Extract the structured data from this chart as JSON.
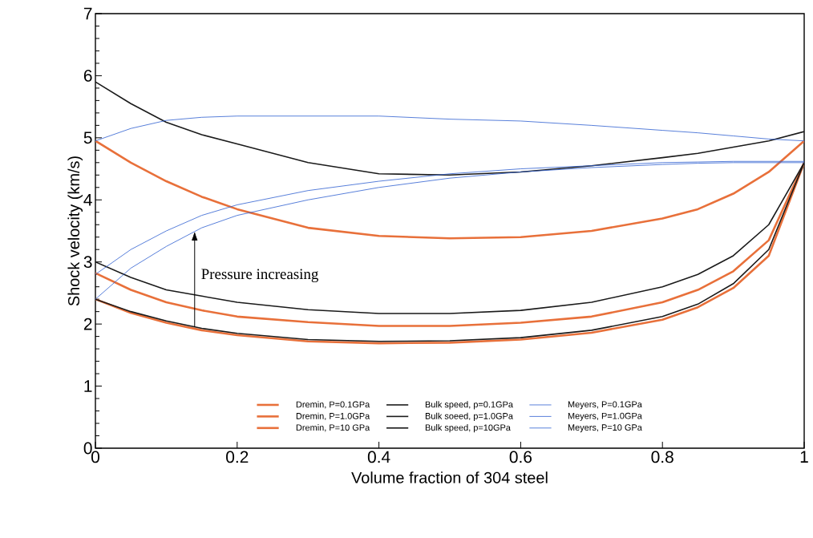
{
  "chart_data": {
    "type": "line",
    "xlabel": "Volume fraction of 304 steel",
    "ylabel": "Shock velocity (km/s)",
    "x": [
      0,
      0.05,
      0.1,
      0.15,
      0.2,
      0.3,
      0.4,
      0.5,
      0.6,
      0.7,
      0.8,
      0.85,
      0.9,
      0.95,
      1
    ],
    "series": [
      {
        "name": "Dremin, P=0.1GPa",
        "color": "#e8703a",
        "values": [
          2.4,
          2.18,
          2.02,
          1.9,
          1.82,
          1.72,
          1.69,
          1.7,
          1.75,
          1.86,
          2.07,
          2.27,
          2.58,
          3.1,
          4.6
        ]
      },
      {
        "name": "Dremin, P=1.0GPa",
        "color": "#e8703a",
        "values": [
          2.82,
          2.55,
          2.35,
          2.22,
          2.12,
          2.03,
          1.97,
          1.97,
          2.02,
          2.12,
          2.35,
          2.55,
          2.85,
          3.35,
          4.6
        ]
      },
      {
        "name": "Dremin, P=10 GPa",
        "color": "#e8703a",
        "values": [
          4.95,
          4.6,
          4.3,
          4.05,
          3.85,
          3.55,
          3.42,
          3.38,
          3.4,
          3.5,
          3.7,
          3.85,
          4.1,
          4.45,
          4.95
        ]
      },
      {
        "name": "Bulk speed, p=0.1GPa",
        "color": "#1a1a1a",
        "values": [
          2.4,
          2.2,
          2.05,
          1.93,
          1.85,
          1.75,
          1.72,
          1.73,
          1.78,
          1.9,
          2.12,
          2.32,
          2.65,
          3.2,
          4.6
        ]
      },
      {
        "name": "Bulk soeed, p=1.0GPa",
        "color": "#1a1a1a",
        "values": [
          3.0,
          2.75,
          2.55,
          2.45,
          2.35,
          2.23,
          2.17,
          2.17,
          2.22,
          2.35,
          2.6,
          2.8,
          3.1,
          3.6,
          4.6
        ]
      },
      {
        "name": "Bulk speed, p=10GPa",
        "color": "#1a1a1a",
        "values": [
          5.9,
          5.55,
          5.25,
          5.05,
          4.9,
          4.6,
          4.42,
          4.4,
          4.45,
          4.55,
          4.68,
          4.75,
          4.85,
          4.95,
          5.1
        ]
      },
      {
        "name": "Meyers, P=0.1GPa",
        "color": "#2f5fd0",
        "values": [
          2.4,
          2.9,
          3.25,
          3.55,
          3.75,
          4.0,
          4.2,
          4.35,
          4.45,
          4.52,
          4.57,
          4.59,
          4.6,
          4.6,
          4.6
        ]
      },
      {
        "name": "Meyers, P=1.0GPa",
        "color": "#2f5fd0",
        "values": [
          2.8,
          3.2,
          3.5,
          3.75,
          3.92,
          4.15,
          4.3,
          4.42,
          4.5,
          4.55,
          4.6,
          4.61,
          4.62,
          4.62,
          4.62
        ]
      },
      {
        "name": "Meyers, P=10 GPa",
        "color": "#2f5fd0",
        "values": [
          4.95,
          5.15,
          5.28,
          5.33,
          5.35,
          5.35,
          5.35,
          5.3,
          5.27,
          5.2,
          5.12,
          5.08,
          5.03,
          4.98,
          4.95
        ]
      }
    ],
    "xlim": [
      0,
      1
    ],
    "ylim": [
      0,
      7
    ],
    "xticks": [
      0,
      0.2,
      0.4,
      0.6,
      0.8,
      1
    ],
    "yticks": [
      0,
      1,
      2,
      3,
      4,
      5,
      6,
      7
    ],
    "legend": "bottom",
    "grid": false,
    "marker": "none",
    "line_style": "solid",
    "annotations": [
      "Pressure increasing"
    ]
  }
}
